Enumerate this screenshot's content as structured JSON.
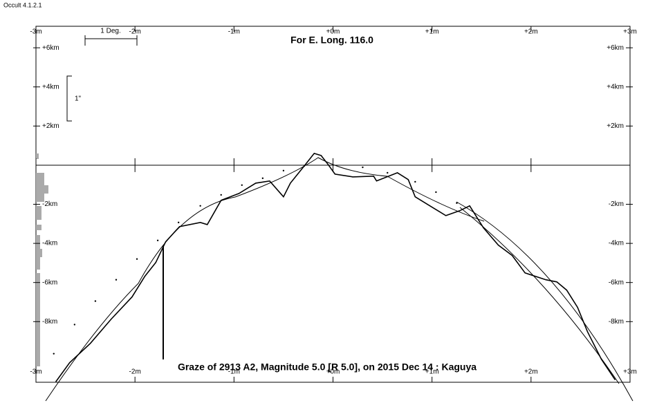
{
  "app_label": "Occult 4.1.2.1",
  "scale_deg_label": "1 Deg.",
  "scale_arcsec_label": "1\"",
  "chart_data": {
    "type": "line",
    "title": "For E. Long. 116.0",
    "footer": "Graze of  2913 A2,  Magnitude 5.0 [R 5.0],  on 2015 Dec 14  :  Kaguya",
    "xlim": [
      -3,
      3
    ],
    "ylim": [
      -11.1,
      7.1
    ],
    "xticks": [
      {
        "value": -3,
        "label": "-3m"
      },
      {
        "value": -2,
        "label": "-2m"
      },
      {
        "value": -1,
        "label": "-1m"
      },
      {
        "value": 0,
        "label": "+0m"
      },
      {
        "value": 1,
        "label": "+1m"
      },
      {
        "value": 2,
        "label": "+2m"
      },
      {
        "value": 3,
        "label": "+3m"
      }
    ],
    "yticks": [
      {
        "value": 6,
        "label": "+6km"
      },
      {
        "value": 4,
        "label": "+4km"
      },
      {
        "value": 2,
        "label": "+2km"
      },
      {
        "value": -2,
        "label": "-2km"
      },
      {
        "value": -4,
        "label": "-4km"
      },
      {
        "value": -6,
        "label": "-6km"
      },
      {
        "value": -8,
        "label": "-8km"
      }
    ],
    "series": [
      {
        "color": "#000000",
        "style": "line",
        "x": [
          -2.8,
          -2.66,
          -2.45,
          -2.24,
          -2.03,
          -1.9,
          -1.79,
          -1.69,
          -1.55,
          -1.34,
          -1.27,
          -1.13,
          -0.95,
          -0.78,
          -0.64,
          -0.5,
          -0.43,
          -0.29,
          -0.19,
          -0.12,
          -0.05,
          0.02,
          0.2,
          0.41,
          0.44,
          0.65,
          0.76,
          0.83,
          1.0,
          1.14,
          1.28,
          1.38,
          1.52,
          1.67,
          1.81,
          1.94,
          2.15,
          2.26,
          2.36,
          2.47,
          2.57,
          2.71,
          2.85
        ],
        "values": [
          -11.08,
          -10.1,
          -9.11,
          -7.87,
          -6.74,
          -5.68,
          -4.98,
          -3.92,
          -3.14,
          -2.93,
          -3.04,
          -1.8,
          -1.45,
          -0.92,
          -0.81,
          -1.62,
          -0.92,
          -0.04,
          0.6,
          0.49,
          0.04,
          -0.46,
          -0.6,
          -0.56,
          -0.81,
          -0.39,
          -0.74,
          -1.62,
          -2.15,
          -2.58,
          -2.33,
          -2.08,
          -3.21,
          -4.09,
          -4.62,
          -5.51,
          -5.86,
          -5.97,
          -6.39,
          -7.27,
          -8.51,
          -9.92,
          -10.98
        ]
      },
      {
        "color": "#000000",
        "style": "dots",
        "x": [
          -2.82,
          -2.61,
          -2.4,
          -2.19,
          -1.98,
          -1.77,
          -1.56,
          -1.34,
          -1.13,
          -0.92,
          -0.71,
          -0.5,
          -0.29,
          0.3,
          0.55,
          0.83,
          1.04,
          1.25
        ],
        "values": [
          -9.64,
          -8.15,
          -6.95,
          -5.86,
          -4.8,
          -3.85,
          -2.93,
          -2.08,
          -1.52,
          -1.02,
          -0.67,
          -0.28,
          -0.04,
          -0.11,
          -0.39,
          -0.85,
          -1.38,
          -1.94
        ]
      }
    ]
  }
}
